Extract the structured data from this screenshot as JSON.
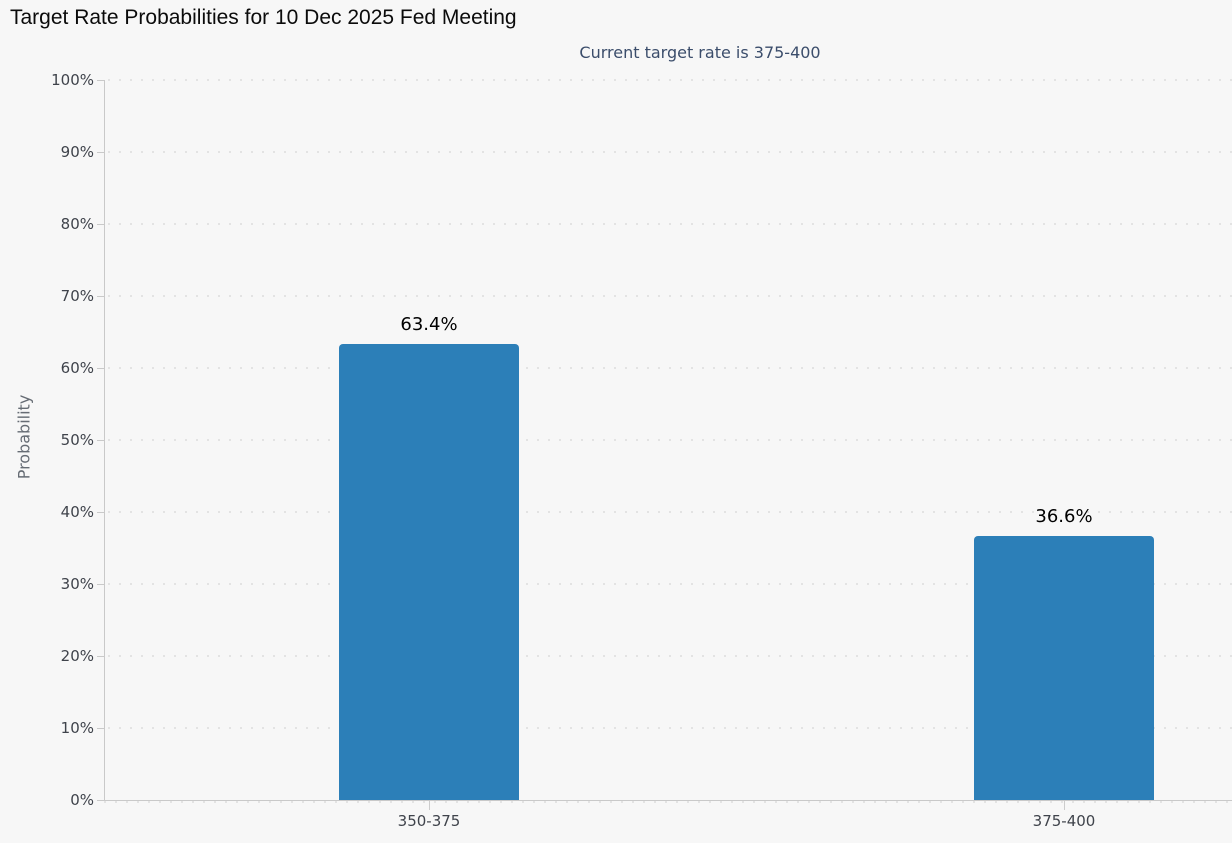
{
  "chart_data": {
    "type": "bar",
    "title": "Target Rate Probabilities for 10 Dec 2025 Fed Meeting",
    "subtitle": "Current target rate is 375-400",
    "categories": [
      "350-375",
      "375-400"
    ],
    "values": [
      63.4,
      36.6
    ],
    "value_labels": [
      "63.4%",
      "36.6%"
    ],
    "xlabel": "",
    "ylabel": "Probability",
    "ylim": [
      0,
      100
    ],
    "ytick_step": 10,
    "ytick_labels": [
      "0%",
      "10%",
      "20%",
      "30%",
      "40%",
      "50%",
      "60%",
      "70%",
      "80%",
      "90%",
      "100%"
    ],
    "grid": "dotted-horizontal",
    "legend": "none",
    "colors": {
      "bar": "#2c7fb8",
      "background": "#f7f7f7",
      "subtitle_text": "#3b4d6b",
      "axis_line": "#c9c9c9",
      "grid_dots": "#e3e3e3",
      "tick_label_text": "#3f434b",
      "title_text": "#0b0b0b",
      "axis_title_text": "#666c74",
      "data_label_text": "#000000"
    }
  }
}
